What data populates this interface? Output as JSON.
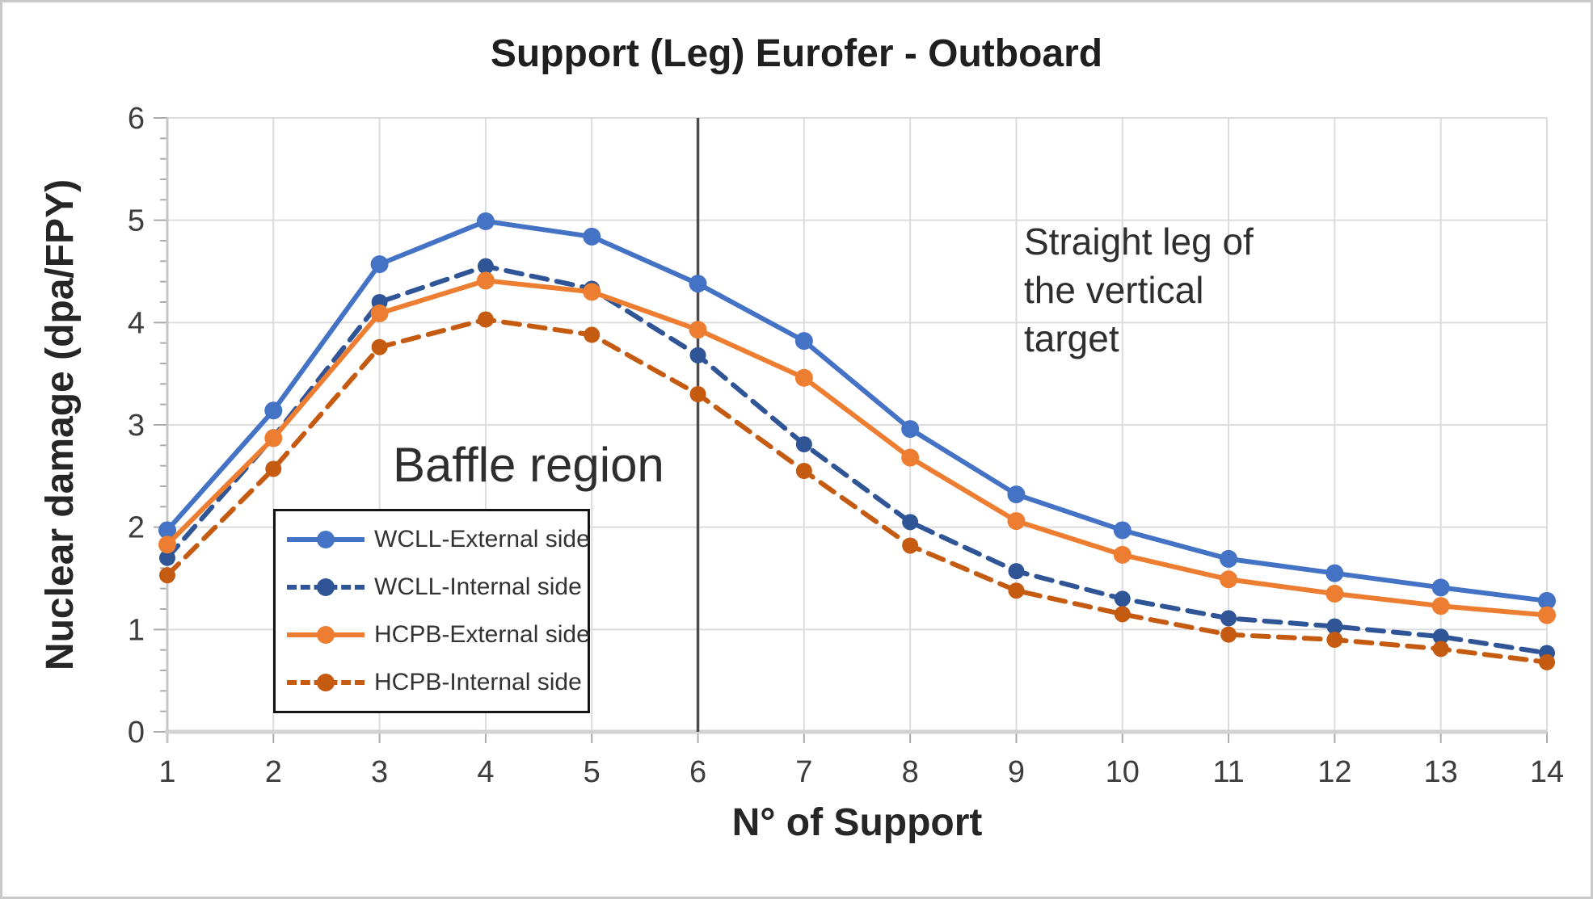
{
  "chart_data": {
    "type": "line",
    "title": "Support (Leg) Eurofer - Outboard",
    "xlabel": "N° of Support",
    "ylabel": "Nuclear damage (dpa/FPY)",
    "xlim": [
      1,
      14
    ],
    "ylim": [
      0,
      6
    ],
    "xticks": [
      1,
      2,
      3,
      4,
      5,
      6,
      7,
      8,
      9,
      10,
      11,
      12,
      13,
      14
    ],
    "yticks": [
      0,
      1,
      2,
      3,
      4,
      5,
      6
    ],
    "y_minor_step": 0.2,
    "grid": true,
    "legend_position": "inside-lower-left",
    "x": [
      1,
      2,
      3,
      4,
      5,
      6,
      7,
      8,
      9,
      10,
      11,
      12,
      13,
      14
    ],
    "series": [
      {
        "name": "WCLL-External side",
        "color": "#4472C4",
        "style": "solid",
        "marker": "circle",
        "values": [
          1.97,
          3.14,
          4.57,
          4.99,
          4.84,
          4.38,
          3.82,
          2.96,
          2.32,
          1.97,
          1.69,
          1.55,
          1.41,
          1.28
        ]
      },
      {
        "name": "WCLL-Internal side",
        "color": "#2F5597",
        "style": "dashed",
        "marker": "circle",
        "values": [
          1.7,
          2.88,
          4.2,
          4.55,
          4.33,
          3.68,
          2.81,
          2.05,
          1.57,
          1.3,
          1.11,
          1.03,
          0.93,
          0.77
        ]
      },
      {
        "name": "HCPB-External side",
        "color": "#ED7D31",
        "style": "solid",
        "marker": "circle",
        "values": [
          1.83,
          2.87,
          4.09,
          4.41,
          4.3,
          3.93,
          3.46,
          2.68,
          2.06,
          1.73,
          1.49,
          1.35,
          1.23,
          1.14
        ]
      },
      {
        "name": "HCPB-Internal side",
        "color": "#C55A11",
        "style": "dashed",
        "marker": "circle",
        "values": [
          1.53,
          2.57,
          3.76,
          4.03,
          3.88,
          3.3,
          2.55,
          1.82,
          1.38,
          1.15,
          0.95,
          0.9,
          0.81,
          0.68
        ]
      }
    ],
    "annotations": {
      "baffle_label": "Baffle region",
      "straight_leg_lines": [
        "Straight leg of",
        "the vertical",
        "target"
      ],
      "vline_x": 6,
      "vline_color": "#4d4d4d"
    },
    "colors": {
      "gridline": "#dcdcdc",
      "axis_line": "#d2d2d2",
      "tick": "#ababab",
      "tick_label": "#3d3d3d"
    }
  }
}
